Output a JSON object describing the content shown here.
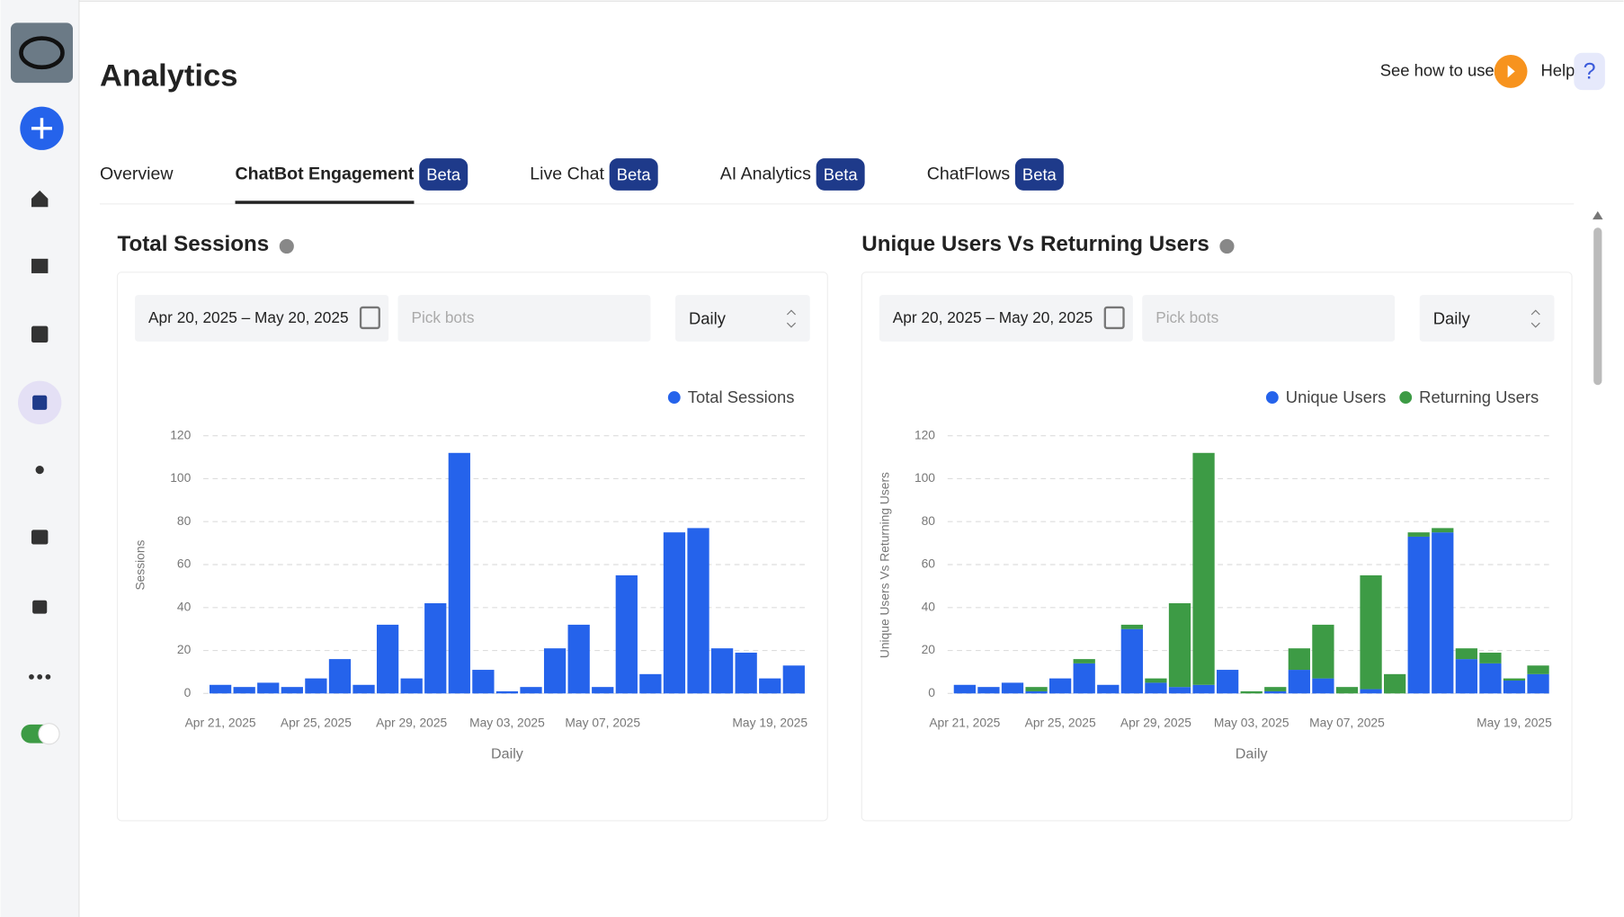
{
  "header": {
    "title": "Analytics",
    "how_to": "See how to use",
    "help": "Help",
    "help_icon": "?"
  },
  "tabs": [
    {
      "label": "Overview"
    },
    {
      "label": "ChatBot Engagement",
      "badge": "Beta"
    },
    {
      "label": "Live Chat",
      "badge": "Beta"
    },
    {
      "label": "AI Analytics",
      "badge": "Beta"
    },
    {
      "label": "ChatFlows",
      "badge": "Beta"
    }
  ],
  "active_tab": 1,
  "chart_data": [
    {
      "type": "bar",
      "title": "Total Sessions",
      "filters": {
        "date_range": "Apr 20, 2025 – May 20, 2025",
        "bots_placeholder": "Pick bots",
        "interval": "Daily"
      },
      "x_label": "Daily",
      "y_label": "Sessions",
      "categories": [
        "Apr 21, 2025",
        null,
        null,
        null,
        "Apr 25, 2025",
        null,
        null,
        null,
        "Apr 29, 2025",
        null,
        null,
        null,
        "May 03, 2025",
        null,
        null,
        null,
        "May 07, 2025",
        null,
        null,
        null,
        null,
        null,
        null,
        "May 19, 2025",
        null
      ],
      "series": [
        {
          "name": "Total Sessions",
          "color": "#2563eb",
          "values": [
            4,
            3,
            5,
            3,
            7,
            16,
            4,
            32,
            7,
            42,
            112,
            11,
            1,
            3,
            21,
            32,
            3,
            55,
            9,
            75,
            77,
            21,
            19,
            7,
            13
          ]
        }
      ],
      "ylim": [
        0,
        120
      ],
      "yticks": [
        0,
        20,
        40,
        60,
        80,
        100,
        120
      ],
      "grid": true,
      "legend": "top-right"
    },
    {
      "type": "stacked_bar",
      "title": "Unique Users Vs Returning Users",
      "filters": {
        "date_range": "Apr 20, 2025 – May 20, 2025",
        "bots_placeholder": "Pick bots",
        "interval": "Daily"
      },
      "x_label": "Daily",
      "y_label": "Unique Users Vs Returning Users",
      "categories": [
        "Apr 21, 2025",
        null,
        null,
        null,
        "Apr 25, 2025",
        null,
        null,
        null,
        "Apr 29, 2025",
        null,
        null,
        null,
        "May 03, 2025",
        null,
        null,
        null,
        "May 07, 2025",
        null,
        null,
        null,
        null,
        null,
        null,
        "May 19, 2025",
        null
      ],
      "series": [
        {
          "name": "Unique Users",
          "color": "#2563eb",
          "values": [
            4,
            3,
            5,
            1,
            7,
            14,
            4,
            30,
            5,
            3,
            4,
            11,
            0,
            1,
            11,
            7,
            0,
            2,
            0,
            73,
            75,
            16,
            14,
            6,
            9
          ]
        },
        {
          "name": "Returning Users",
          "color": "#3d9b45",
          "values": [
            0,
            0,
            0,
            2,
            0,
            2,
            0,
            2,
            2,
            39,
            108,
            0,
            1,
            2,
            10,
            25,
            3,
            53,
            9,
            2,
            2,
            5,
            5,
            1,
            4
          ]
        }
      ],
      "ylim": [
        0,
        120
      ],
      "yticks": [
        0,
        20,
        40,
        60,
        80,
        100,
        120
      ],
      "grid": true,
      "legend": "top-right"
    }
  ]
}
